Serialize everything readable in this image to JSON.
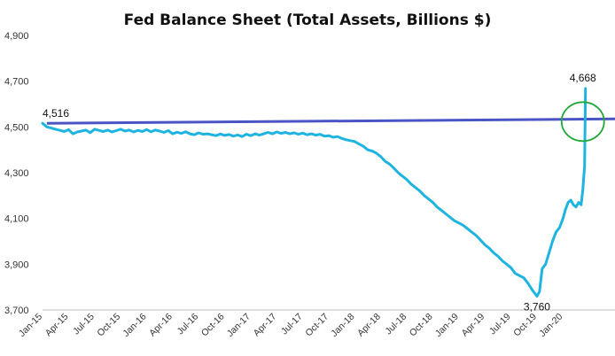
{
  "chart_data": {
    "type": "line",
    "title": "Fed Balance Sheet (Total Assets, Billions $)",
    "xlabel": "",
    "ylabel": "",
    "ylim": [
      3700,
      4900
    ],
    "yticks": [
      "4,900",
      "4,700",
      "4,500",
      "4,300",
      "4,100",
      "3,900",
      "3,700"
    ],
    "ytick_values": [
      4900,
      4700,
      4500,
      4300,
      4100,
      3900,
      3700
    ],
    "xticks": [
      "Jan-15",
      "Apr-15",
      "Jul-15",
      "Oct-15",
      "Jan-16",
      "Apr-16",
      "Jul-16",
      "Oct-16",
      "Jan-17",
      "Apr-17",
      "Jul-17",
      "Oct-17",
      "Jan-18",
      "Apr-18",
      "Jul-18",
      "Oct-18",
      "Jan-19",
      "Apr-19",
      "Jul-19",
      "Oct-19",
      "Jan-20"
    ],
    "grid": false,
    "legend": "none",
    "series_color": "#1fb4e0",
    "reference_line": {
      "y": 4516,
      "y_end": 4535,
      "color": "#4a54c4"
    },
    "highlight_circle_color": "#22a83a",
    "annotations": [
      {
        "label": "4,516",
        "x": 0,
        "y": 4516
      },
      {
        "label": "3,760",
        "x": 57,
        "y": 3760
      },
      {
        "label": "4,668",
        "x": 62.6,
        "y": 4668
      }
    ],
    "points": [
      [
        0,
        4516
      ],
      [
        0.5,
        4500
      ],
      [
        1,
        4495
      ],
      [
        1.5,
        4490
      ],
      [
        2,
        4485
      ],
      [
        2.5,
        4480
      ],
      [
        3,
        4488
      ],
      [
        3.5,
        4470
      ],
      [
        4,
        4478
      ],
      [
        4.5,
        4482
      ],
      [
        5,
        4486
      ],
      [
        5.5,
        4475
      ],
      [
        6,
        4490
      ],
      [
        6.5,
        4485
      ],
      [
        7,
        4480
      ],
      [
        7.5,
        4486
      ],
      [
        8,
        4478
      ],
      [
        8.5,
        4484
      ],
      [
        9,
        4490
      ],
      [
        9.5,
        4482
      ],
      [
        10,
        4486
      ],
      [
        10.5,
        4478
      ],
      [
        11,
        4485
      ],
      [
        11.5,
        4480
      ],
      [
        12,
        4488
      ],
      [
        12.5,
        4479
      ],
      [
        13,
        4486
      ],
      [
        13.5,
        4482
      ],
      [
        14,
        4476
      ],
      [
        14.5,
        4484
      ],
      [
        15,
        4470
      ],
      [
        15.5,
        4477
      ],
      [
        16,
        4472
      ],
      [
        16.5,
        4479
      ],
      [
        17,
        4470
      ],
      [
        17.5,
        4466
      ],
      [
        18,
        4474
      ],
      [
        18.5,
        4468
      ],
      [
        19,
        4470
      ],
      [
        19.5,
        4466
      ],
      [
        20,
        4462
      ],
      [
        20.5,
        4469
      ],
      [
        21,
        4463
      ],
      [
        21.5,
        4467
      ],
      [
        22,
        4460
      ],
      [
        22.5,
        4465
      ],
      [
        23,
        4458
      ],
      [
        23.5,
        4468
      ],
      [
        24,
        4462
      ],
      [
        24.5,
        4470
      ],
      [
        25,
        4464
      ],
      [
        25.5,
        4470
      ],
      [
        26,
        4476
      ],
      [
        26.5,
        4470
      ],
      [
        27,
        4478
      ],
      [
        27.5,
        4472
      ],
      [
        28,
        4476
      ],
      [
        28.5,
        4470
      ],
      [
        29,
        4474
      ],
      [
        29.5,
        4468
      ],
      [
        30,
        4473
      ],
      [
        30.5,
        4466
      ],
      [
        31,
        4470
      ],
      [
        31.5,
        4464
      ],
      [
        32,
        4468
      ],
      [
        32.5,
        4460
      ],
      [
        33,
        4462
      ],
      [
        33.5,
        4455
      ],
      [
        34,
        4458
      ],
      [
        34.5,
        4450
      ],
      [
        35,
        4444
      ],
      [
        35.5,
        4440
      ],
      [
        36,
        4436
      ],
      [
        36.5,
        4425
      ],
      [
        37,
        4415
      ],
      [
        37.5,
        4400
      ],
      [
        38,
        4395
      ],
      [
        38.5,
        4385
      ],
      [
        39,
        4370
      ],
      [
        39.5,
        4350
      ],
      [
        40,
        4338
      ],
      [
        40.5,
        4320
      ],
      [
        41,
        4300
      ],
      [
        41.5,
        4285
      ],
      [
        42,
        4270
      ],
      [
        42.5,
        4250
      ],
      [
        43,
        4235
      ],
      [
        43.5,
        4220
      ],
      [
        44,
        4200
      ],
      [
        44.5,
        4185
      ],
      [
        45,
        4170
      ],
      [
        45.5,
        4150
      ],
      [
        46,
        4135
      ],
      [
        46.5,
        4120
      ],
      [
        47,
        4105
      ],
      [
        47.5,
        4090
      ],
      [
        48,
        4080
      ],
      [
        48.5,
        4070
      ],
      [
        49,
        4055
      ],
      [
        49.5,
        4040
      ],
      [
        50,
        4025
      ],
      [
        50.5,
        4005
      ],
      [
        51,
        3985
      ],
      [
        51.5,
        3970
      ],
      [
        52,
        3950
      ],
      [
        52.5,
        3935
      ],
      [
        53,
        3915
      ],
      [
        53.5,
        3900
      ],
      [
        54,
        3885
      ],
      [
        54.5,
        3860
      ],
      [
        55,
        3850
      ],
      [
        55.5,
        3840
      ],
      [
        56,
        3815
      ],
      [
        56.5,
        3785
      ],
      [
        57,
        3760
      ],
      [
        57.3,
        3780
      ],
      [
        57.6,
        3880
      ],
      [
        58,
        3900
      ],
      [
        58.4,
        3950
      ],
      [
        58.8,
        4000
      ],
      [
        59.2,
        4040
      ],
      [
        59.6,
        4060
      ],
      [
        60,
        4100
      ],
      [
        60.3,
        4140
      ],
      [
        60.6,
        4170
      ],
      [
        60.9,
        4180
      ],
      [
        61.2,
        4160
      ],
      [
        61.5,
        4150
      ],
      [
        61.8,
        4170
      ],
      [
        62.1,
        4160
      ],
      [
        62.3,
        4230
      ],
      [
        62.5,
        4330
      ],
      [
        62.6,
        4668
      ]
    ]
  }
}
